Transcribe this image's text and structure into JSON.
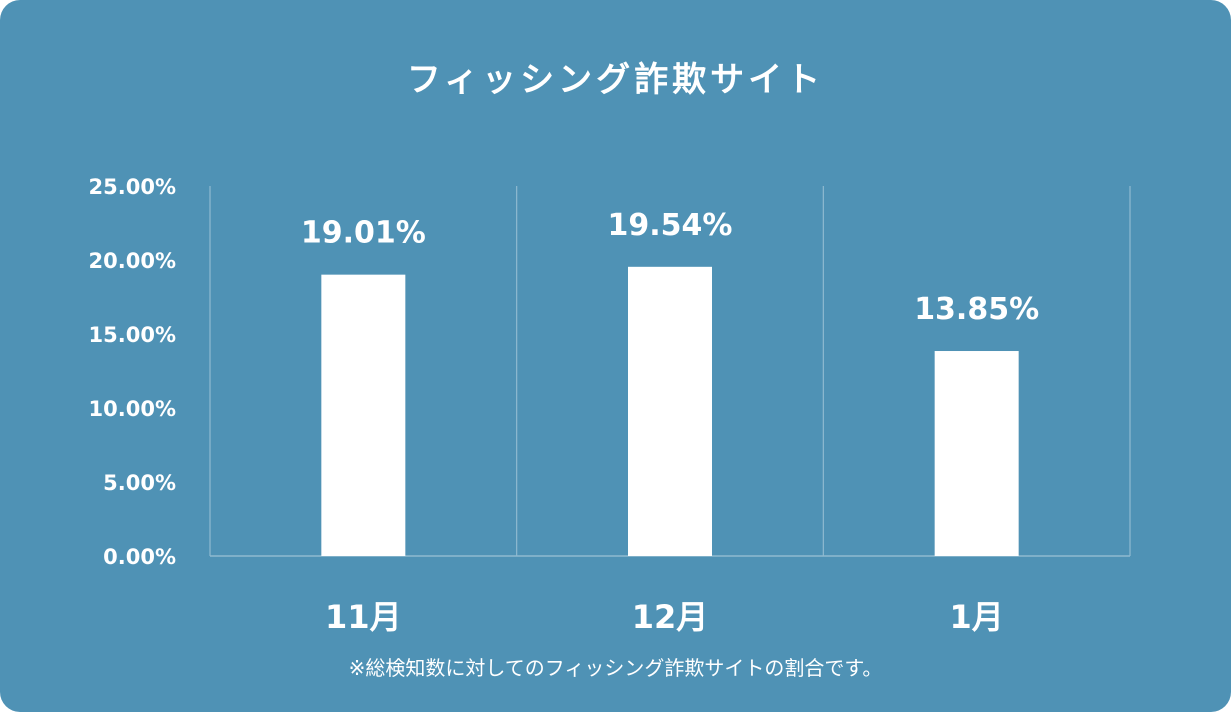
{
  "colors": {
    "background": "#4f92b5",
    "bar": "#ffffff",
    "text": "#ffffff",
    "grid": "#8fbad0"
  },
  "chart_data": {
    "type": "bar",
    "title": "フィッシング詐欺サイト",
    "categories": [
      "11月",
      "12月",
      "1月"
    ],
    "values": [
      19.01,
      19.54,
      13.85
    ],
    "value_labels": [
      "19.01%",
      "19.54%",
      "13.85%"
    ],
    "y_ticks": [
      "25.00%",
      "20.00%",
      "15.00%",
      "10.00%",
      "5.00%",
      "0.00%"
    ],
    "ylim": [
      0,
      25
    ],
    "xlabel": "",
    "ylabel": "",
    "grid": "vertical separators",
    "note": "※総検知数に対してのフィッシング詐欺サイトの割合です。"
  }
}
